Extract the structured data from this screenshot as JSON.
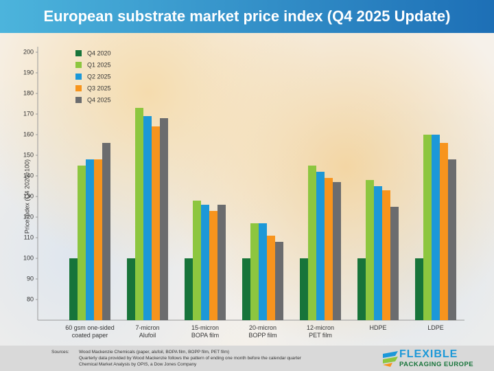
{
  "chart_data": {
    "type": "bar",
    "title": "European substrate market price index (Q4 2025 Update)",
    "y_label": "Price Index (Q4 2020=100)",
    "categories": [
      "60 gsm one-sided\ncoated paper",
      "7-micron\nAlufoil",
      "15-micron\nBOPA film",
      "20-micron\nBOPP film",
      "12-micron\nPET film",
      "HDPE",
      "LDPE"
    ],
    "series": [
      {
        "name": "Q4 2020",
        "color": "#17743a",
        "values": [
          100,
          100,
          100,
          100,
          100,
          100,
          100
        ]
      },
      {
        "name": "Q1 2025",
        "color": "#8dc63f",
        "values": [
          145,
          173,
          128,
          117,
          145,
          138,
          160
        ]
      },
      {
        "name": "Q2 2025",
        "color": "#1c98d8",
        "values": [
          148,
          169,
          126,
          117,
          142,
          135,
          160
        ]
      },
      {
        "name": "Q3 2025",
        "color": "#f7941d",
        "values": [
          148,
          164,
          123,
          111,
          139,
          133,
          156
        ]
      },
      {
        "name": "Q4 2025",
        "color": "#6b6c6e",
        "values": [
          156,
          168,
          126,
          108,
          137,
          125,
          148
        ]
      }
    ],
    "ylim": [
      70,
      200
    ],
    "yticks": [
      80,
      90,
      100,
      110,
      120,
      130,
      140,
      150,
      160,
      170,
      180,
      190,
      200
    ],
    "legend": "upper-left"
  },
  "footer": {
    "sources_label": "Sources:",
    "lines": [
      "Wood Mackenzie Chemicals (paper, alufoil, BOPA film, BOPP film, PET film)",
      "Quarterly data provided by Wood Mackenzie follows the pattern of ending one month before the calendar quarter",
      "Chemical Market Analysis by OPIS, a Dow Jones Company"
    ],
    "logo_top": "FLEXIBLE",
    "logo_bottom": "PACKAGING EUROPE"
  }
}
